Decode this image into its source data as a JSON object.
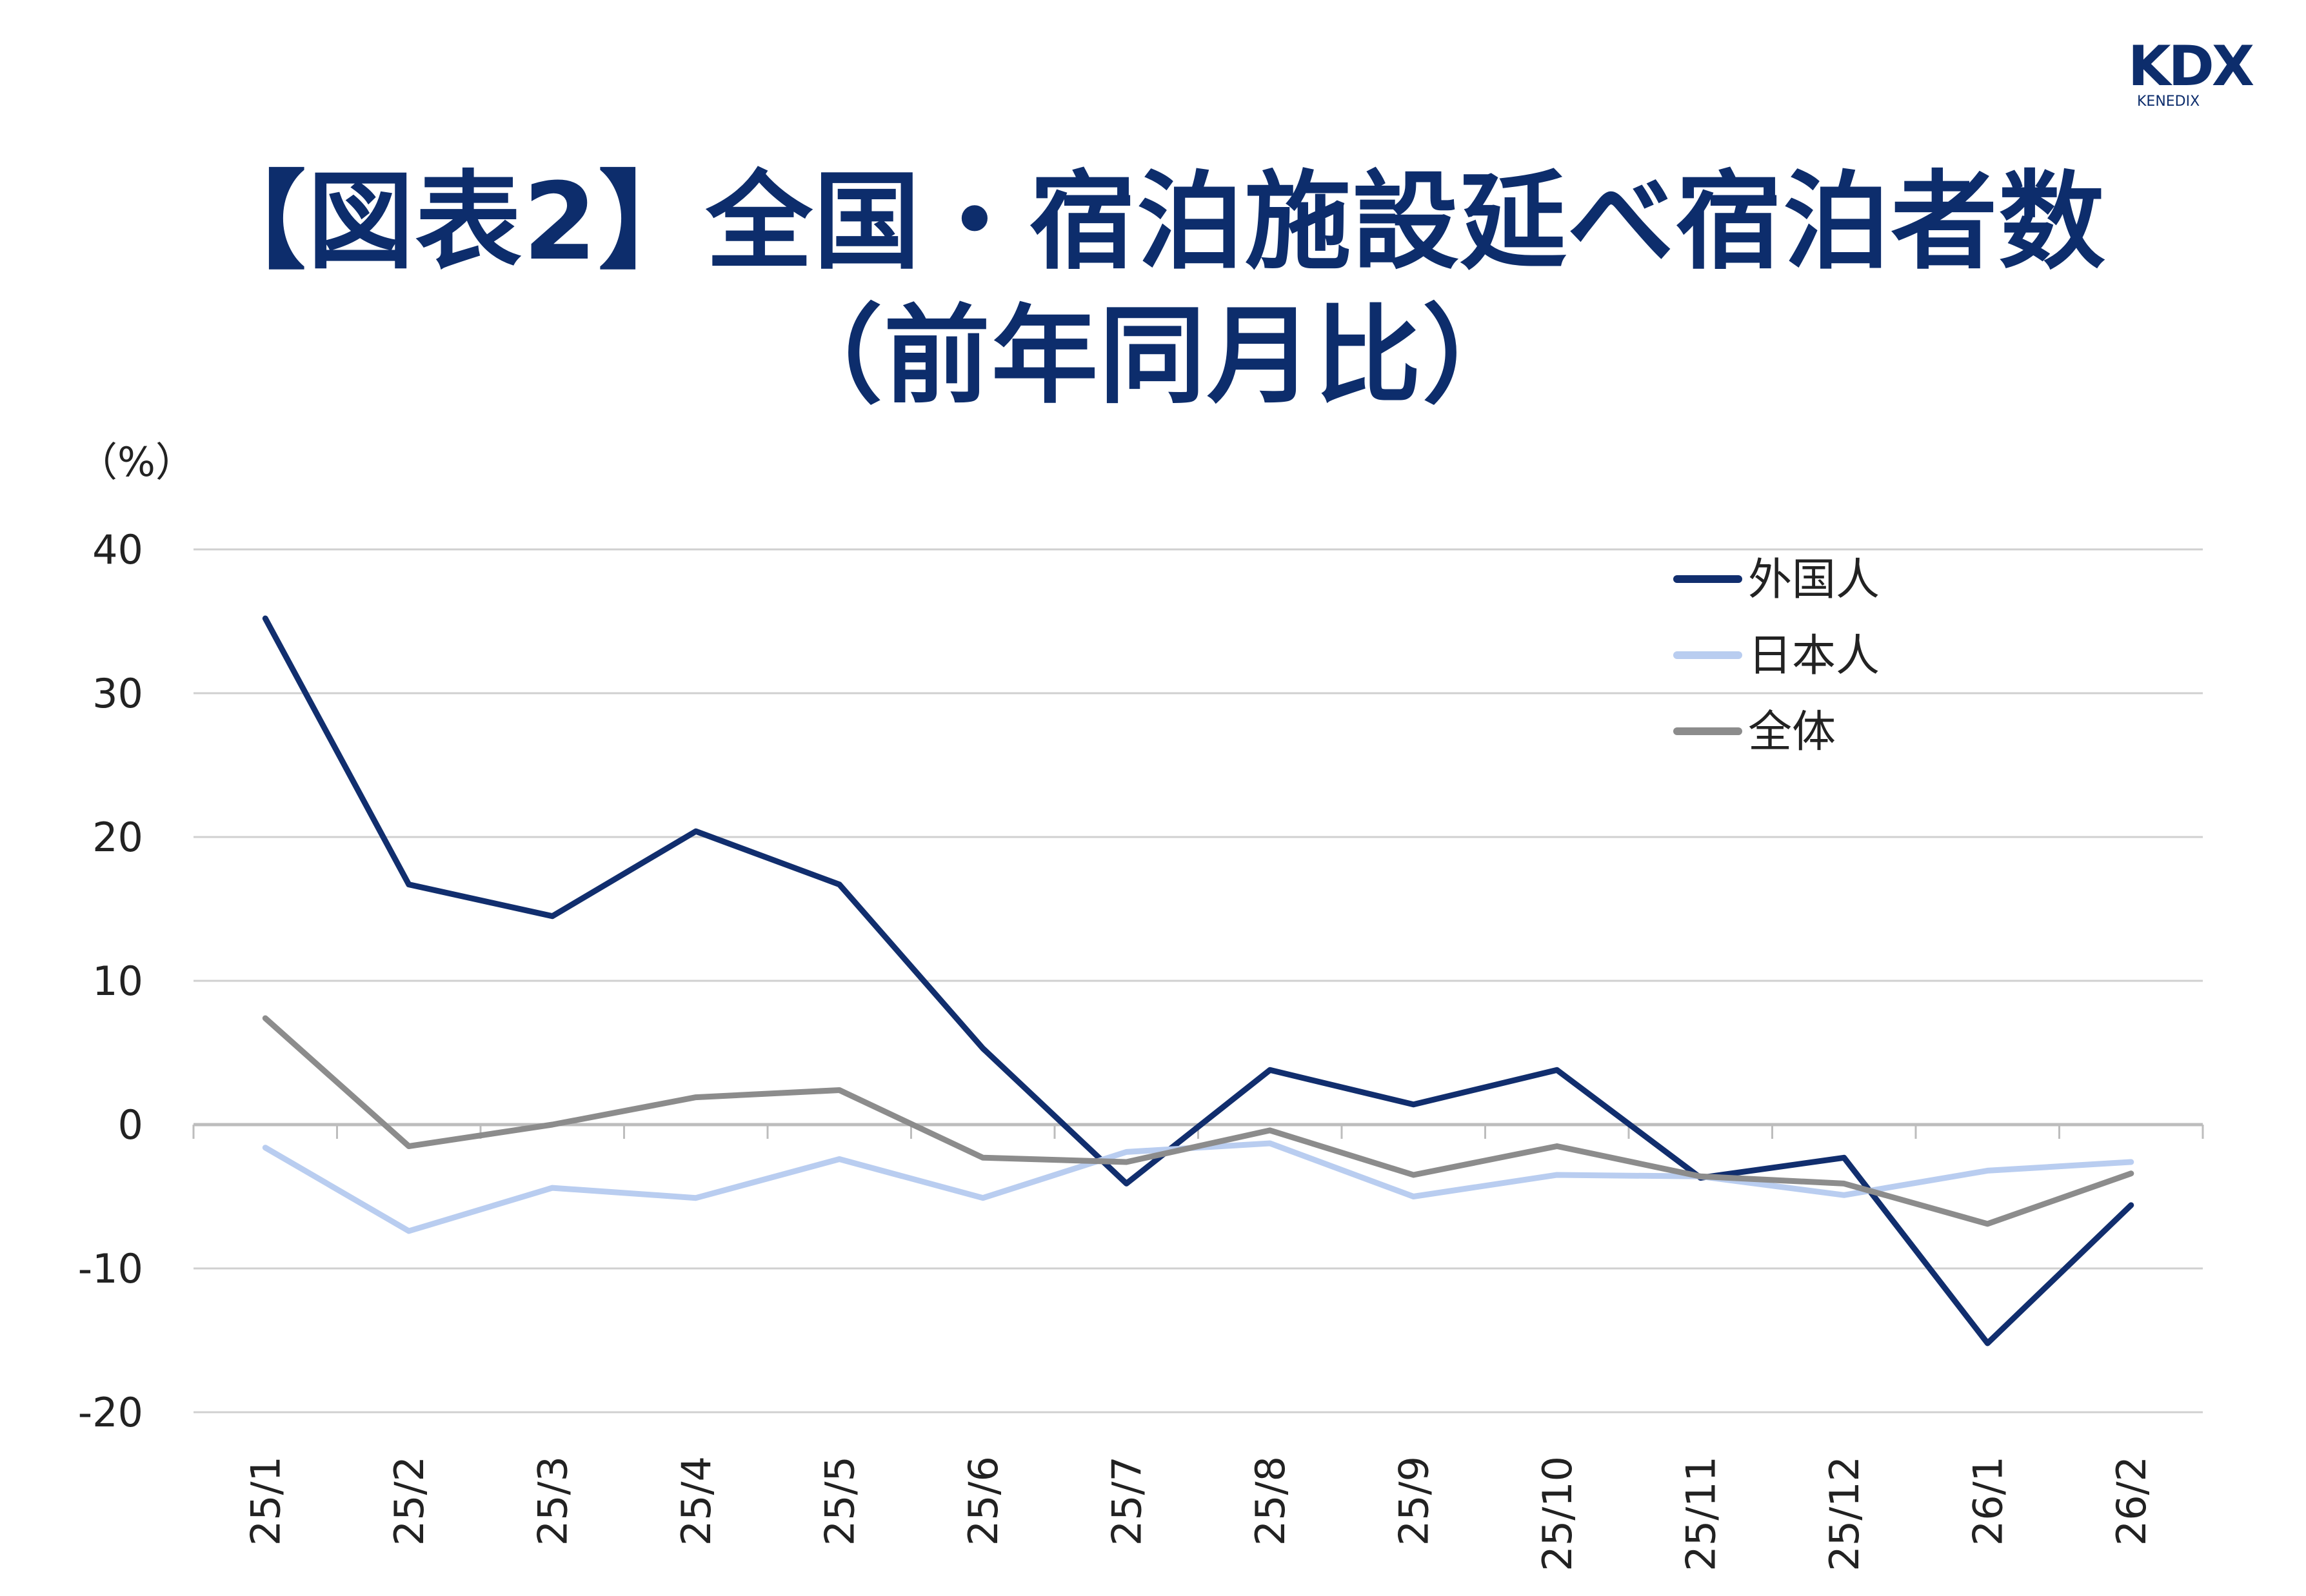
{
  "logo": {
    "text": "KDX",
    "subtext": "KENEDIX",
    "color": "#0d2d6c"
  },
  "title": {
    "line1": "【図表2】全国・宿泊施設延べ宿泊者数",
    "line2": "（前年同月比）"
  },
  "chart_data": {
    "type": "line",
    "y_unit": "（%）",
    "categories": [
      "25/1",
      "25/2",
      "25/3",
      "25/4",
      "25/5",
      "25/6",
      "25/7",
      "25/8",
      "25/9",
      "25/10",
      "25/11",
      "25/12",
      "26/1",
      "26/2"
    ],
    "ylim": [
      -20,
      40
    ],
    "yticks": [
      40,
      30,
      20,
      10,
      0,
      -10,
      -20
    ],
    "grid": true,
    "legend_position": "top-right",
    "series": [
      {
        "name": "外国人",
        "color": "#112e6e",
        "values": [
          35.2,
          16.7,
          14.5,
          20.4,
          16.7,
          5.3,
          -4.1,
          3.8,
          1.4,
          3.8,
          -3.7,
          -2.3,
          -15.2,
          -5.6
        ]
      },
      {
        "name": "日本人",
        "color": "#b9cdf0",
        "values": [
          -1.6,
          -7.4,
          -4.4,
          -5.1,
          -2.4,
          -5.1,
          -1.9,
          -1.3,
          -5.0,
          -3.5,
          -3.6,
          -4.9,
          -3.2,
          -2.6
        ]
      },
      {
        "name": "全体",
        "color": "#8c8c8c",
        "values": [
          7.4,
          -1.5,
          0.0,
          1.9,
          2.4,
          -2.3,
          -2.6,
          -0.4,
          -3.5,
          -1.5,
          -3.6,
          -4.1,
          -6.9,
          -3.4
        ]
      }
    ]
  }
}
